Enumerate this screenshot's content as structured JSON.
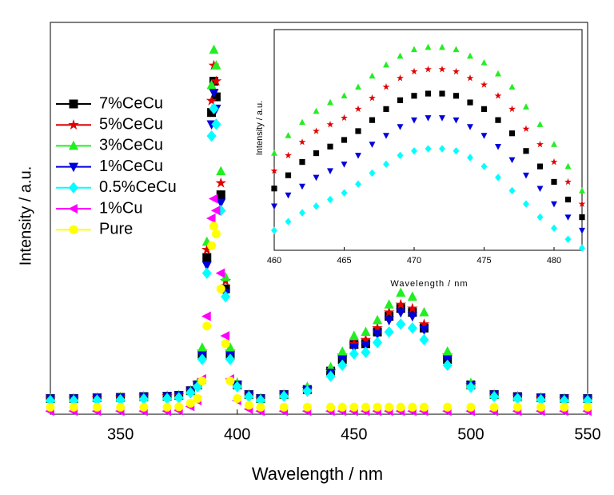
{
  "chart_data": [
    {
      "type": "scatter",
      "xlabel": "Wavelength / nm",
      "ylabel": "Intensity / a.u.",
      "xlim": [
        320,
        550
      ],
      "xticks": [
        350,
        400,
        450,
        500,
        550
      ],
      "ylim": [
        0,
        100
      ],
      "x": [
        320,
        330,
        340,
        350,
        360,
        370,
        375,
        380,
        383,
        385,
        387,
        389,
        390,
        391,
        393,
        395,
        397,
        400,
        405,
        410,
        420,
        430,
        440,
        445,
        450,
        455,
        460,
        465,
        470,
        475,
        480,
        490,
        500,
        510,
        520,
        530,
        540,
        550
      ],
      "series": [
        {
          "name": "7%CeCu",
          "color": "#000000",
          "marker": "square",
          "values": [
            4,
            4,
            4.2,
            4.3,
            4.5,
            4.6,
            4.8,
            6,
            7.5,
            15,
            40,
            77,
            85,
            81,
            56,
            32,
            15,
            7.5,
            5,
            4,
            5,
            6.3,
            11,
            14,
            17.8,
            18,
            21,
            25,
            27,
            26,
            22,
            14,
            7.5,
            5,
            4.5,
            4.2,
            4,
            4
          ]
        },
        {
          "name": "5%CeCu",
          "color": "#e00000",
          "marker": "star",
          "values": [
            4,
            4,
            4.2,
            4.3,
            4.5,
            4.6,
            4.8,
            6,
            8,
            16,
            42,
            80,
            89,
            85,
            59,
            34,
            16,
            8,
            5,
            4,
            5,
            6.5,
            11,
            15,
            18,
            19,
            22,
            26,
            28,
            27,
            23,
            15,
            7.5,
            5,
            4.5,
            4.2,
            4,
            4
          ]
        },
        {
          "name": "3%CeCu",
          "color": "#22ee22",
          "marker": "triangle-up",
          "values": [
            4,
            4,
            4.2,
            4.3,
            4.5,
            4.6,
            4.8,
            6,
            8,
            17,
            44,
            84,
            93,
            89,
            62,
            35,
            17,
            8,
            5,
            4,
            5,
            7,
            12,
            16,
            20,
            21,
            24,
            28,
            31,
            30,
            26,
            16,
            8,
            5,
            4.5,
            4.2,
            4,
            4
          ]
        },
        {
          "name": "1%CeCu",
          "color": "#0000dd",
          "marker": "triangle-down",
          "values": [
            4,
            4,
            4.2,
            4.3,
            4.5,
            4.6,
            4.8,
            6,
            7.5,
            15,
            38,
            74,
            82,
            78,
            54,
            31,
            15,
            7.5,
            5,
            4,
            5,
            6.2,
            10.6,
            14,
            17,
            17.6,
            20.5,
            24,
            26,
            25,
            21.6,
            14,
            7.3,
            5,
            4.5,
            4.2,
            4,
            4
          ]
        },
        {
          "name": "0.5%CeCu",
          "color": "#00ffff",
          "marker": "diamond",
          "values": [
            3.5,
            3.5,
            3.6,
            3.7,
            3.9,
            4,
            4.2,
            5.5,
            7,
            14,
            36,
            71,
            78,
            74,
            52,
            30,
            14,
            7,
            4.5,
            3.6,
            4.6,
            5.9,
            9.7,
            12.5,
            15.4,
            15.8,
            18.3,
            21,
            23,
            22,
            19,
            12.5,
            6.9,
            4.5,
            4,
            3.7,
            3.5,
            3.5
          ]
        },
        {
          "name": "1%Cu",
          "color": "#ff00ff",
          "marker": "triangle-left",
          "values": [
            0.8,
            0.8,
            0.8,
            0.8,
            0.8,
            0.8,
            1,
            2,
            3.5,
            9,
            25,
            50,
            55,
            52,
            36,
            20,
            9,
            3.5,
            1.3,
            0.8,
            0.8,
            0.8,
            0.8,
            0.8,
            0.8,
            0.8,
            0.8,
            0.8,
            0.8,
            0.8,
            0.8,
            0.8,
            0.8,
            0.8,
            0.8,
            0.8,
            0.8,
            0.8
          ]
        },
        {
          "name": "Pure",
          "color": "#ffff00",
          "marker": "circle",
          "values": [
            1.8,
            1.8,
            1.8,
            1.8,
            1.8,
            1.8,
            1.9,
            2.8,
            4,
            8.5,
            22.5,
            43,
            48,
            46,
            32,
            18,
            8.5,
            4,
            2.3,
            1.8,
            1.8,
            1.8,
            1.8,
            1.8,
            1.8,
            1.8,
            1.8,
            1.8,
            1.8,
            1.8,
            1.8,
            1.8,
            1.8,
            1.8,
            1.8,
            1.8,
            1.8,
            1.8
          ]
        }
      ]
    },
    {
      "type": "scatter",
      "xlabel": "Wavelength / nm",
      "ylabel": "Intensity / a.u.",
      "xlim": [
        460,
        482
      ],
      "xticks": [
        460,
        465,
        470,
        475,
        480
      ],
      "ylim": [
        0,
        100
      ],
      "x": [
        460,
        461,
        462,
        463,
        464,
        465,
        466,
        467,
        468,
        469,
        470,
        471,
        472,
        473,
        474,
        475,
        476,
        477,
        478,
        479,
        480,
        481,
        482
      ],
      "series": [
        {
          "color": "#000000",
          "marker": "square",
          "values": [
            28,
            34,
            40,
            44,
            47,
            50,
            54,
            59,
            64,
            68,
            70,
            71,
            71,
            70,
            67,
            64,
            59,
            53,
            45,
            38,
            31,
            23,
            15
          ]
        },
        {
          "color": "#e00000",
          "marker": "star",
          "values": [
            36,
            43,
            49,
            54,
            57,
            60,
            64,
            69,
            74,
            78,
            81,
            82,
            82,
            81,
            78,
            75,
            70,
            64,
            55,
            48,
            40,
            31,
            21
          ]
        },
        {
          "color": "#22ee22",
          "marker": "triangle-up",
          "values": [
            44,
            52,
            58,
            63,
            67,
            70,
            74,
            79,
            84,
            88,
            91,
            92,
            92,
            91,
            88,
            85,
            80,
            74,
            65,
            57,
            48,
            38,
            27
          ]
        },
        {
          "color": "#0000dd",
          "marker": "triangle-down",
          "values": [
            20,
            25,
            29,
            33,
            36,
            39,
            43,
            48,
            52,
            56,
            59,
            60,
            60,
            59,
            56,
            52,
            47,
            41,
            34,
            28,
            21,
            15,
            9
          ]
        },
        {
          "color": "#00ffff",
          "marker": "diamond",
          "values": [
            9,
            13,
            17,
            20,
            23,
            26,
            30,
            35,
            39,
            43,
            45,
            46,
            46,
            45,
            42,
            38,
            33,
            27,
            21,
            15,
            10,
            5,
            1
          ]
        }
      ]
    }
  ]
}
